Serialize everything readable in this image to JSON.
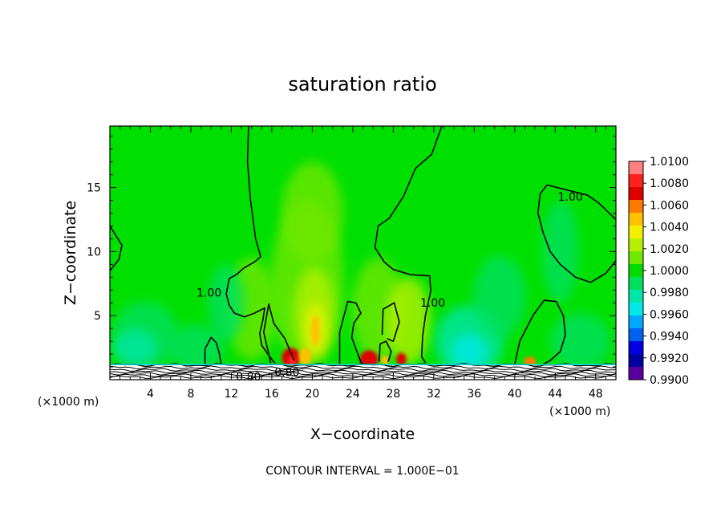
{
  "chart_data": {
    "type": "heatmap",
    "title": "saturation ratio",
    "xlabel": "X−coordinate",
    "ylabel": "Z−coordinate",
    "x_unit_left": "(×1000 m)",
    "x_unit_right": "(×1000 m)",
    "xlim": [
      0,
      50
    ],
    "ylim": [
      0,
      19.8
    ],
    "x_ticks": [
      4,
      8,
      12,
      16,
      20,
      24,
      28,
      32,
      36,
      40,
      44,
      48
    ],
    "y_ticks": [
      5,
      10,
      15
    ],
    "colorbar": {
      "levels": [
        "1.0100",
        "1.0080",
        "1.0060",
        "1.0040",
        "1.0020",
        "1.0000",
        "0.9980",
        "0.9960",
        "0.9940",
        "0.9920",
        "0.9900"
      ],
      "colors": [
        "#ff8080",
        "#ff2020",
        "#e00000",
        "#ff7a00",
        "#ffc000",
        "#f0f000",
        "#b4f000",
        "#70e800",
        "#00dc00",
        "#00e060",
        "#00e6a8",
        "#00e8e8",
        "#00a8ff",
        "#0060f0",
        "#0000e0",
        "#0000a0",
        "#5a00a0"
      ]
    },
    "background_color": "#00e000",
    "contour_labels": [
      {
        "text": "1.00",
        "x": 9.8,
        "z": 6.8
      },
      {
        "text": "1.00",
        "x": 31.9,
        "z": 6.0
      },
      {
        "text": "1.00",
        "x": 45.5,
        "z": 14.3
      },
      {
        "text": "0.80",
        "x": 17.5,
        "z": 0.6
      },
      {
        "text": "0.80",
        "x": 13.7,
        "z": 0.25
      }
    ],
    "contour_1_00": [
      [
        [
          13.7,
          19.8
        ],
        [
          13.6,
          17
        ],
        [
          13.9,
          14
        ],
        [
          14.4,
          11
        ],
        [
          14.9,
          9.6
        ],
        [
          14.3,
          9.2
        ],
        [
          13.2,
          8.7
        ],
        [
          12.5,
          8.2
        ],
        [
          11.8,
          7.9
        ],
        [
          11.5,
          6.7
        ],
        [
          11.8,
          5.8
        ],
        [
          12.3,
          5.2
        ],
        [
          13.3,
          4.9
        ],
        [
          14.3,
          5.2
        ],
        [
          15.3,
          5.6
        ],
        [
          15.1,
          4.6
        ],
        [
          14.8,
          3.6
        ],
        [
          15.0,
          2.7
        ],
        [
          15.7,
          1.9
        ],
        [
          16.3,
          1.3
        ]
      ],
      [
        [
          32.8,
          19.8
        ],
        [
          31.8,
          17.6
        ],
        [
          30.2,
          16.5
        ],
        [
          29,
          14.3
        ],
        [
          27.6,
          12.6
        ],
        [
          26.5,
          12
        ],
        [
          26.2,
          10.3
        ],
        [
          27.1,
          9.2
        ],
        [
          28,
          8.6
        ],
        [
          29.7,
          8.2
        ],
        [
          31.6,
          8.1
        ],
        [
          31.7,
          6.9
        ],
        [
          31.2,
          5.1
        ],
        [
          30.9,
          3.4
        ],
        [
          30.8,
          1.8
        ],
        [
          31.2,
          1.3
        ]
      ],
      [
        [
          0,
          12
        ],
        [
          1.2,
          10.5
        ],
        [
          0.9,
          9.4
        ],
        [
          0,
          8.5
        ]
      ],
      [
        [
          50,
          12.5
        ],
        [
          48.3,
          13.8
        ],
        [
          47.2,
          14.4
        ],
        [
          44.7,
          14.9
        ],
        [
          43.2,
          15.2
        ],
        [
          42.5,
          14.5
        ],
        [
          42.3,
          13
        ],
        [
          42.8,
          11.5
        ],
        [
          43.5,
          10
        ],
        [
          44.5,
          9
        ],
        [
          46,
          8
        ],
        [
          47.5,
          7.6
        ],
        [
          49,
          8.3
        ],
        [
          50,
          9.3
        ]
      ],
      [
        [
          9.4,
          1.2
        ],
        [
          9.4,
          2.4
        ],
        [
          10,
          3.3
        ],
        [
          10.5,
          2.9
        ],
        [
          10.8,
          2.1
        ],
        [
          11,
          1.2
        ]
      ],
      [
        [
          15.9,
          1.3
        ],
        [
          15.2,
          3.7
        ],
        [
          15.7,
          5.9
        ],
        [
          16.2,
          4.4
        ],
        [
          17.3,
          3.2
        ],
        [
          18.2,
          1.5
        ]
      ],
      [
        [
          22.7,
          1.2
        ],
        [
          22.7,
          3.7
        ],
        [
          23.5,
          6.1
        ],
        [
          24.3,
          6.0
        ],
        [
          24.8,
          5.2
        ],
        [
          24.1,
          4.4
        ],
        [
          23.9,
          3.3
        ],
        [
          24.5,
          2.0
        ],
        [
          24.9,
          1.2
        ]
      ],
      [
        [
          26.9,
          3.5
        ],
        [
          27.0,
          5.5
        ],
        [
          28.1,
          6.0
        ],
        [
          28.6,
          4.5
        ],
        [
          28.0,
          3.0
        ],
        [
          27.4,
          3.2
        ]
      ],
      [
        [
          26.6,
          1.4
        ],
        [
          26.7,
          2.8
        ],
        [
          27.3,
          3.0
        ],
        [
          27.8,
          2.2
        ],
        [
          27.5,
          1.4
        ]
      ],
      [
        [
          40.0,
          1.2
        ],
        [
          40.5,
          3.0
        ],
        [
          41.8,
          5.0
        ],
        [
          42.9,
          6.2
        ],
        [
          44.1,
          6.1
        ],
        [
          44.8,
          5.0
        ],
        [
          45.0,
          3.5
        ],
        [
          44.5,
          2.2
        ],
        [
          43.5,
          1.5
        ],
        [
          42.8,
          1.2
        ]
      ]
    ],
    "contour_interval_text": "CONTOUR INTERVAL = 1.000E−01"
  }
}
